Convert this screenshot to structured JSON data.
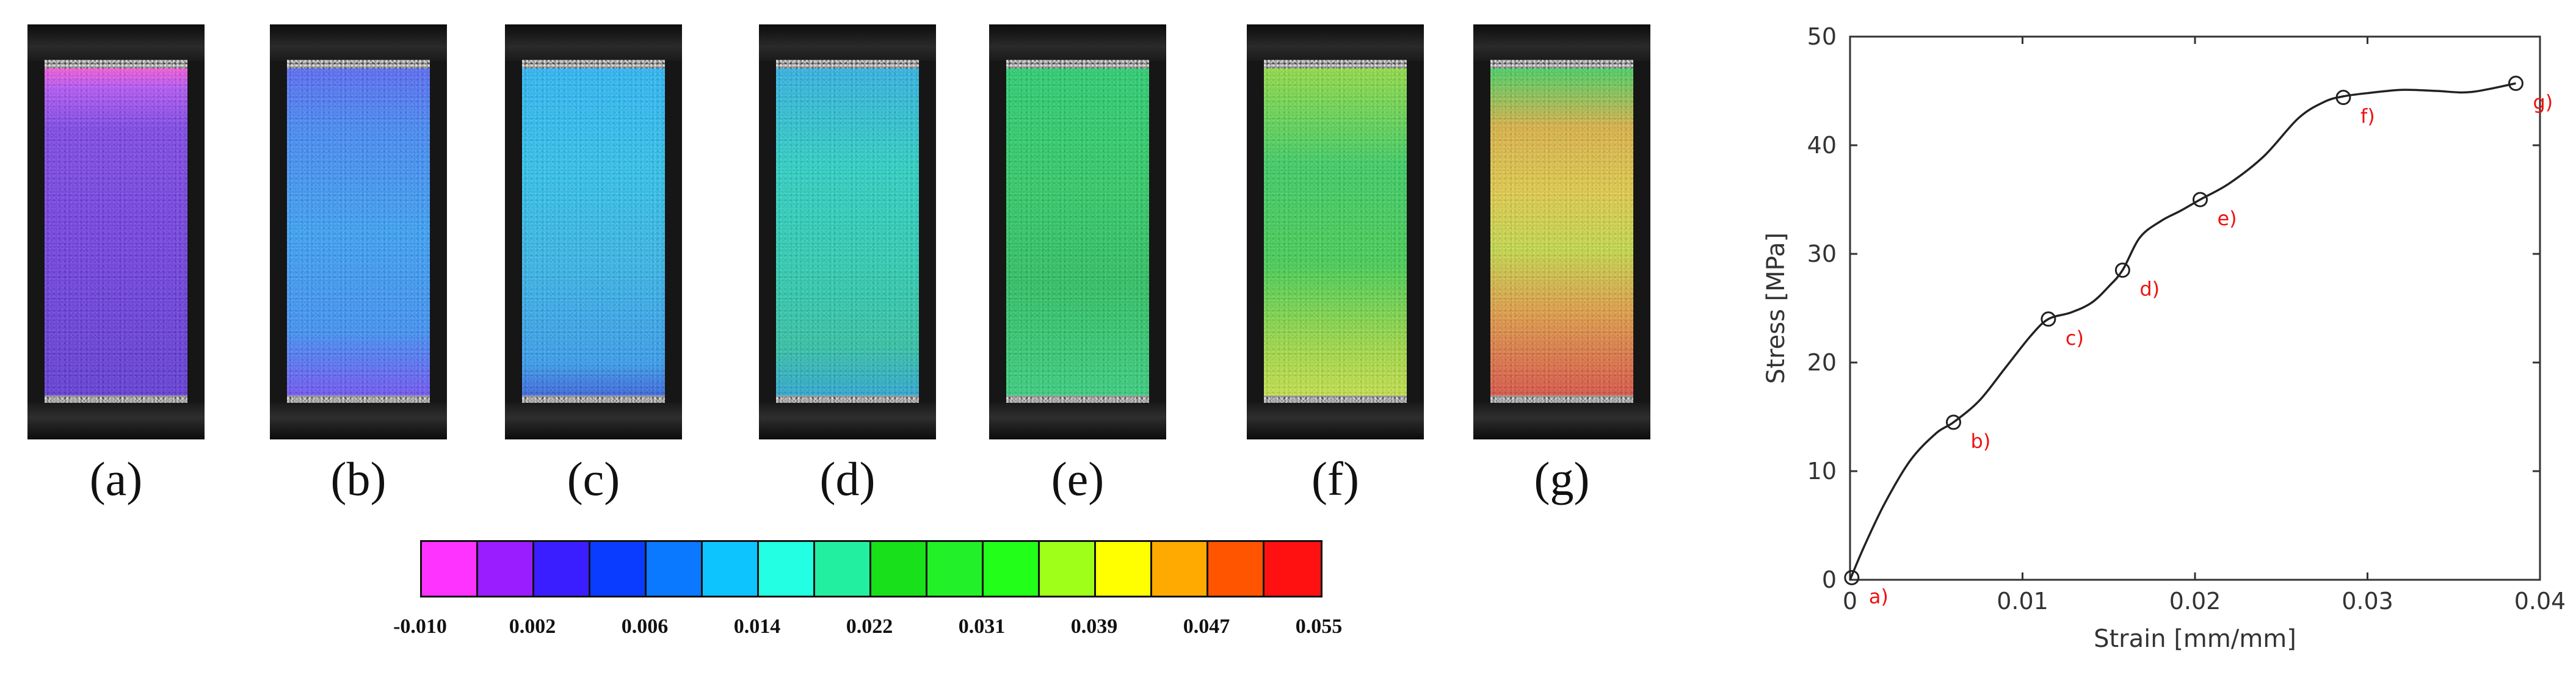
{
  "panels": [
    {
      "label": "(a)",
      "overlay": "linear-gradient(180deg, #ff4fe0 0%, #b44dff 6%, #7a3cf0 18%, #6a34e8 55%, #5a2fdc 100%)"
    },
    {
      "label": "(b)",
      "overlay": "linear-gradient(180deg, #4f63ff 0%, #3a86ff 18%, #2ea0ff 50%, #3390ff 80%, #6a4bff 100%)"
    },
    {
      "label": "(c)",
      "overlay": "linear-gradient(180deg, #1eb8ff 0%, #22c6f5 30%, #29b8f0 60%, #2a9cf5 90%, #2c5ee6 100%)"
    },
    {
      "label": "(d)",
      "overlay": "linear-gradient(180deg, #22b3ea 0%, #1ed6c8 30%, #1fd2b4 60%, #25c6a5 85%, #1ea8d8 100%)"
    },
    {
      "label": "(e)",
      "overlay": "linear-gradient(180deg, #1bd36a 0%, #22d060 35%, #1fc45a 65%, #2ad47a 100%)"
    },
    {
      "label": "(f)",
      "overlay": "linear-gradient(180deg, #8ee33a 0%, #2fd25c 30%, #3ad34a 60%, #9ee03a 85%, #c8e840 100%)"
    },
    {
      "label": "(g)",
      "overlay": "linear-gradient(180deg, #3ed45a 0%, #e0b43a 18%, #e8d040 38%, #c8e040 55%, #e89a3a 75%, #e04a3a 100%)"
    }
  ],
  "colorbar": {
    "colors": [
      "#ff33ff",
      "#9a1dff",
      "#3a1eff",
      "#0a3cff",
      "#0a78ff",
      "#0ec4ff",
      "#22ffe2",
      "#22f0a0",
      "#18e01a",
      "#22f028",
      "#22ff18",
      "#a0ff18",
      "#ffff00",
      "#ffaa00",
      "#ff5500",
      "#ff1111"
    ],
    "tick_labels": [
      "-0.010",
      "0.002",
      "0.006",
      "0.014",
      "0.022",
      "0.031",
      "0.039",
      "0.047",
      "0.055"
    ]
  },
  "chart_data": {
    "type": "line",
    "title": "",
    "xlabel": "Strain [mm/mm]",
    "ylabel": "Stress [MPa]",
    "xlim": [
      0,
      0.04
    ],
    "ylim": [
      0,
      50
    ],
    "x_ticks": [
      0,
      0.01,
      0.02,
      0.03,
      0.04
    ],
    "x_tick_labels": [
      "0",
      "0.01",
      "0.02",
      "0.03",
      "0.04"
    ],
    "y_ticks": [
      0,
      10,
      20,
      30,
      40,
      50
    ],
    "y_tick_labels": [
      "0",
      "10",
      "20",
      "30",
      "40",
      "50"
    ],
    "grid": false,
    "line_color": "#222222",
    "marker_label_color": "#ee1111",
    "series": [
      {
        "x": [
          0,
          0.0008,
          0.002,
          0.0035,
          0.005,
          0.006,
          0.0075,
          0.009,
          0.0105,
          0.0115,
          0.0128,
          0.014,
          0.015,
          0.0158,
          0.0168,
          0.018,
          0.0192,
          0.0203,
          0.022,
          0.024,
          0.026,
          0.0275,
          0.0286,
          0.03,
          0.032,
          0.034,
          0.036,
          0.0386
        ],
        "y": [
          0,
          3,
          7,
          11,
          13.5,
          14.5,
          16.5,
          19.5,
          22.5,
          24,
          24.6,
          25.5,
          27,
          28.5,
          31.5,
          33,
          34,
          35,
          36.5,
          39,
          42.5,
          44,
          44.5,
          44.8,
          45.1,
          45,
          44.9,
          45.7
        ]
      }
    ],
    "markers": [
      {
        "label": "a)",
        "x": 0.0001,
        "y": 0.2
      },
      {
        "label": "b)",
        "x": 0.006,
        "y": 14.5
      },
      {
        "label": "c)",
        "x": 0.0115,
        "y": 24
      },
      {
        "label": "d)",
        "x": 0.0158,
        "y": 28.5
      },
      {
        "label": "e)",
        "x": 0.0203,
        "y": 35
      },
      {
        "label": "f)",
        "x": 0.0286,
        "y": 44.4
      },
      {
        "label": "g)",
        "x": 0.0386,
        "y": 45.7
      }
    ]
  }
}
